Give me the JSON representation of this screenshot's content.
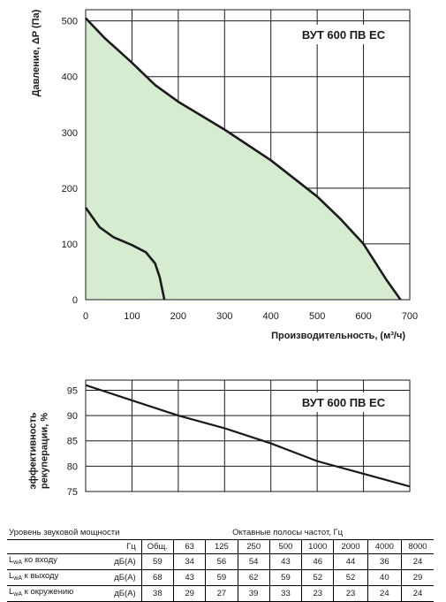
{
  "chart_data": [
    {
      "type": "line",
      "model_label": "ВУТ 600 ПВ ЕС",
      "xlabel": "Производительность, (м³/ч)",
      "ylabel": "Давление, ΔP (Па)",
      "xlim": [
        0,
        700
      ],
      "ylim": [
        0,
        520
      ],
      "x_ticks": [
        0,
        100,
        200,
        300,
        400,
        500,
        600,
        700
      ],
      "y_ticks": [
        0,
        100,
        200,
        300,
        400,
        500
      ],
      "grid": true,
      "series": [
        {
          "fill": "#d5ecd0",
          "points": [
            [
              0,
              505
            ],
            [
              40,
              470
            ],
            [
              100,
              425
            ],
            [
              150,
              385
            ],
            [
              200,
              355
            ],
            [
              300,
              305
            ],
            [
              400,
              250
            ],
            [
              500,
              185
            ],
            [
              550,
              145
            ],
            [
              600,
              100
            ],
            [
              650,
              35
            ],
            [
              680,
              0
            ]
          ]
        },
        {
          "points": [
            [
              0,
              165
            ],
            [
              30,
              130
            ],
            [
              60,
              112
            ],
            [
              100,
              98
            ],
            [
              130,
              85
            ],
            [
              150,
              65
            ],
            [
              160,
              40
            ],
            [
              170,
              0
            ]
          ]
        }
      ]
    },
    {
      "type": "line",
      "model_label": "ВУТ 600 ПВ ЕС",
      "ylabel": "эффективность рекуперации, %",
      "xlim": [
        0,
        700
      ],
      "ylim": [
        75,
        97
      ],
      "y_ticks": [
        75,
        80,
        85,
        90,
        95
      ],
      "grid": true,
      "series": [
        {
          "points": [
            [
              0,
              96
            ],
            [
              100,
              93
            ],
            [
              200,
              90
            ],
            [
              300,
              87.5
            ],
            [
              400,
              84.5
            ],
            [
              500,
              81
            ],
            [
              600,
              78.5
            ],
            [
              700,
              76
            ]
          ]
        }
      ]
    }
  ],
  "sound_table": {
    "title": "Уровень звуковой мощности",
    "bands_title": "Октавные полосы частот, Гц",
    "unit_header": "Гц",
    "headers": [
      "Общ.",
      "63",
      "125",
      "250",
      "500",
      "1000",
      "2000",
      "4000",
      "8000"
    ],
    "rows": [
      {
        "label_main": "L",
        "label_sub": "wA",
        "label_rest": " ко входу",
        "unit": "дБ(А)",
        "values": [
          "59",
          "34",
          "56",
          "54",
          "43",
          "46",
          "44",
          "36",
          "24"
        ]
      },
      {
        "label_main": "L",
        "label_sub": "wA",
        "label_rest": " к выходу",
        "unit": "дБ(А)",
        "values": [
          "68",
          "43",
          "59",
          "62",
          "59",
          "52",
          "52",
          "40",
          "29"
        ]
      },
      {
        "label_main": "L",
        "label_sub": "wA",
        "label_rest": " к окружению",
        "unit": "дБ(А)",
        "values": [
          "38",
          "29",
          "27",
          "39",
          "33",
          "23",
          "23",
          "24",
          "24"
        ]
      }
    ]
  },
  "colors": {
    "fill": "#d5ecd0",
    "line": "#1a1a1a",
    "grid": "#1a1a1a"
  }
}
